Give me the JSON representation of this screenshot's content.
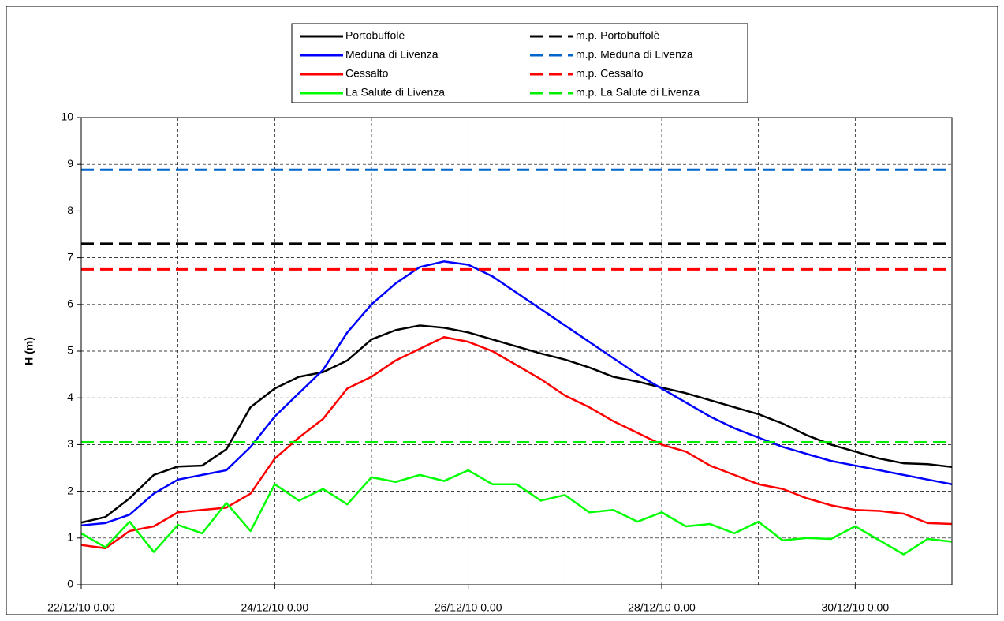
{
  "chart_data": {
    "type": "line",
    "ylabel": "H (m)",
    "x": [
      "22/12/10 0.00",
      "22/12/10 6.00",
      "22/12/10 12.00",
      "22/12/10 18.00",
      "23/12/10 0.00",
      "23/12/10 6.00",
      "23/12/10 12.00",
      "23/12/10 18.00",
      "24/12/10 0.00",
      "24/12/10 6.00",
      "24/12/10 12.00",
      "24/12/10 18.00",
      "25/12/10 0.00",
      "25/12/10 6.00",
      "25/12/10 12.00",
      "25/12/10 18.00",
      "26/12/10 0.00",
      "26/12/10 6.00",
      "26/12/10 12.00",
      "26/12/10 18.00",
      "27/12/10 0.00",
      "27/12/10 6.00",
      "27/12/10 12.00",
      "27/12/10 18.00",
      "28/12/10 0.00",
      "28/12/10 6.00",
      "28/12/10 12.00",
      "28/12/10 18.00",
      "29/12/10 0.00",
      "29/12/10 6.00",
      "29/12/10 12.00",
      "29/12/10 18.00",
      "30/12/10 0.00",
      "30/12/10 6.00",
      "30/12/10 12.00",
      "30/12/10 18.00",
      "31/12/10 0.00"
    ],
    "series": [
      {
        "name": "Portobuffolè",
        "color": "#000000",
        "values": [
          1.33,
          1.45,
          1.85,
          2.35,
          2.53,
          2.55,
          2.9,
          3.8,
          4.2,
          4.45,
          4.55,
          4.8,
          5.25,
          5.45,
          5.55,
          5.5,
          5.4,
          5.25,
          5.1,
          4.95,
          4.82,
          4.65,
          4.45,
          4.35,
          4.22,
          4.1,
          3.95,
          3.8,
          3.65,
          3.45,
          3.2,
          3.0,
          2.85,
          2.7,
          2.6,
          2.58,
          2.52
        ]
      },
      {
        "name": "Meduna di Livenza",
        "color": "#0000ff",
        "values": [
          1.27,
          1.32,
          1.5,
          1.95,
          2.25,
          2.35,
          2.45,
          2.95,
          3.6,
          4.1,
          4.6,
          5.4,
          6.0,
          6.45,
          6.8,
          6.92,
          6.85,
          6.6,
          6.25,
          5.9,
          5.55,
          5.2,
          4.85,
          4.5,
          4.2,
          3.9,
          3.6,
          3.35,
          3.15,
          2.95,
          2.8,
          2.65,
          2.55,
          2.45,
          2.35,
          2.25,
          2.15
        ]
      },
      {
        "name": "Cessalto",
        "color": "#ff0000",
        "values": [
          0.85,
          0.78,
          1.15,
          1.25,
          1.55,
          1.6,
          1.65,
          1.95,
          2.7,
          3.15,
          3.55,
          4.2,
          4.45,
          4.8,
          5.05,
          5.3,
          5.2,
          5.0,
          4.7,
          4.4,
          4.05,
          3.8,
          3.5,
          3.25,
          3.0,
          2.85,
          2.55,
          2.35,
          2.15,
          2.05,
          1.85,
          1.7,
          1.6,
          1.58,
          1.52,
          1.32,
          1.3
        ]
      },
      {
        "name": "La Salute di Livenza",
        "color": "#00ff00",
        "values": [
          1.1,
          0.8,
          1.35,
          0.7,
          1.28,
          1.1,
          1.75,
          1.15,
          2.15,
          1.8,
          2.05,
          1.72,
          2.3,
          2.2,
          2.35,
          2.22,
          2.45,
          2.15,
          2.15,
          1.8,
          1.92,
          1.55,
          1.6,
          1.35,
          1.55,
          1.25,
          1.3,
          1.1,
          1.35,
          0.95,
          1.0,
          0.98,
          1.25,
          0.95,
          0.65,
          0.98,
          0.92
        ]
      },
      {
        "name": "m.p. Portobuffolè",
        "color": "#000000",
        "dashed": true,
        "value": 7.3
      },
      {
        "name": "m.p. Meduna di Livenza",
        "color": "#0066cc",
        "dashed": true,
        "value": 8.88
      },
      {
        "name": "m.p. Cessalto",
        "color": "#ff0000",
        "dashed": true,
        "value": 6.75
      },
      {
        "name": "m.p. La Salute di Livenza",
        "color": "#00ee00",
        "dashed": true,
        "value": 3.05
      }
    ],
    "xlim": [
      "22/12/10 0.00",
      "31/12/10 0.00"
    ],
    "xticks": [
      "22/12/10 0.00",
      "24/12/10 0.00",
      "26/12/10 0.00",
      "28/12/10 0.00",
      "30/12/10 0.00"
    ],
    "ylim": [
      0,
      10
    ],
    "yticks": [
      0,
      1,
      2,
      3,
      4,
      5,
      6,
      7,
      8,
      9,
      10
    ],
    "grid": true,
    "legend": "top"
  }
}
